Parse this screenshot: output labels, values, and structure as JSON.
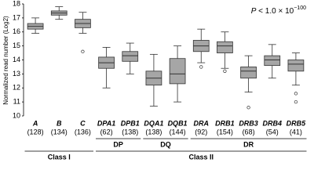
{
  "chart_data": {
    "type": "box",
    "y_label": "Normalized read number (Log2)",
    "annotation": [
      "P",
      " < 1.0 × 10",
      "−100"
    ],
    "categories": [
      "A",
      "B",
      "C",
      "DPA1",
      "DPB1",
      "DQA1",
      "DQB1",
      "DRA",
      "DRB1",
      "DRB3",
      "DRB4",
      "DRB5"
    ],
    "counts": [
      "(128)",
      "(134)",
      "(136)",
      "(62)",
      "(138)",
      "(138)",
      "(144)",
      "(92)",
      "(154)",
      "(68)",
      "(54)",
      "(41)"
    ],
    "groups": [
      "DP",
      "DQ",
      "DR"
    ],
    "classes": [
      "Class I",
      "Class II"
    ],
    "color": "#a6a6a6",
    "boxes": [
      {
        "min": 15.9,
        "q1": 16.2,
        "median": 16.4,
        "q3": 16.6,
        "max": 17.0,
        "outliers": []
      },
      {
        "min": 16.9,
        "q1": 17.2,
        "median": 17.35,
        "q3": 17.5,
        "max": 17.8,
        "outliers": []
      },
      {
        "min": 15.9,
        "q1": 16.3,
        "median": 16.6,
        "q3": 16.9,
        "max": 17.4,
        "outliers": [
          14.6
        ]
      },
      {
        "min": 12.0,
        "q1": 13.4,
        "median": 13.8,
        "q3": 14.2,
        "max": 14.9,
        "outliers": []
      },
      {
        "min": 13.0,
        "q1": 13.9,
        "median": 14.3,
        "q3": 14.6,
        "max": 15.2,
        "outliers": []
      },
      {
        "min": 10.7,
        "q1": 12.2,
        "median": 12.7,
        "q3": 13.2,
        "max": 14.4,
        "outliers": []
      },
      {
        "min": 11.0,
        "q1": 12.3,
        "median": 13.0,
        "q3": 14.1,
        "max": 15.0,
        "outliers": []
      },
      {
        "min": 13.8,
        "q1": 14.6,
        "median": 15.0,
        "q3": 15.4,
        "max": 16.2,
        "outliers": [
          13.5
        ]
      },
      {
        "min": 13.4,
        "q1": 14.5,
        "median": 15.0,
        "q3": 15.3,
        "max": 16.0,
        "outliers": [
          13.2
        ]
      },
      {
        "min": 11.7,
        "q1": 12.7,
        "median": 13.2,
        "q3": 13.5,
        "max": 14.3,
        "outliers": [
          10.6
        ]
      },
      {
        "min": 12.7,
        "q1": 13.6,
        "median": 14.0,
        "q3": 14.3,
        "max": 15.1,
        "outliers": []
      },
      {
        "min": 12.2,
        "q1": 13.2,
        "median": 13.7,
        "q3": 14.0,
        "max": 14.5,
        "outliers": [
          11.6,
          11.0
        ]
      }
    ],
    "ylim": [
      10,
      18
    ],
    "yticks": [
      10,
      11,
      12,
      13,
      14,
      15,
      16,
      17,
      18
    ],
    "grid": false
  }
}
